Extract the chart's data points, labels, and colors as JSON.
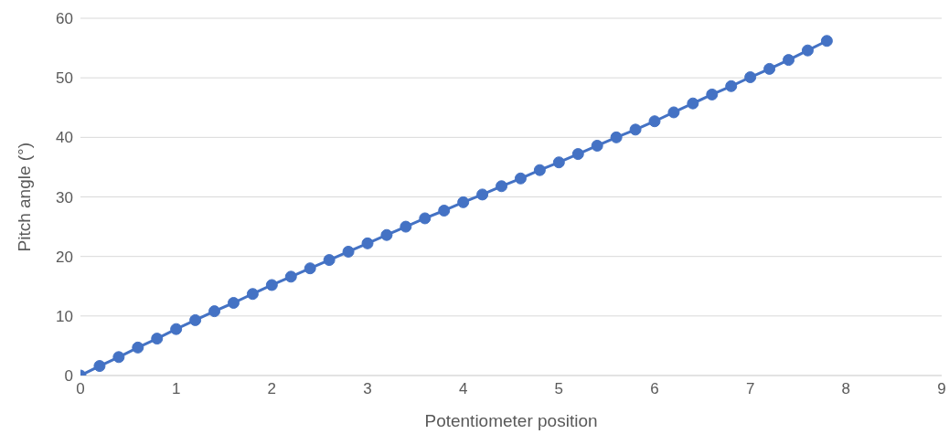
{
  "chart_data": {
    "type": "line",
    "xlabel": "Potentiometer position",
    "ylabel": "Pitch angle (°)",
    "x": [
      0,
      0.2,
      0.4,
      0.6,
      0.8,
      1,
      1.2,
      1.4,
      1.6,
      1.8,
      2,
      2.2,
      2.4,
      2.6,
      2.8,
      3,
      3.2,
      3.4,
      3.6,
      3.8,
      4,
      4.2,
      4.4,
      4.6,
      4.8,
      5,
      5.2,
      5.4,
      5.6,
      5.8,
      6,
      6.2,
      6.4,
      6.6,
      6.8,
      7,
      7.2,
      7.4,
      7.6,
      7.8
    ],
    "series": [
      {
        "color": "#4472c4",
        "values": [
          0,
          1.6,
          3.1,
          4.7,
          6.2,
          7.8,
          9.3,
          10.8,
          12.2,
          13.7,
          15.2,
          16.6,
          18.0,
          19.4,
          20.8,
          22.2,
          23.6,
          25.0,
          26.4,
          27.7,
          29.1,
          30.4,
          31.8,
          33.1,
          34.5,
          35.8,
          37.2,
          38.6,
          40.0,
          41.3,
          42.7,
          44.2,
          45.7,
          47.2,
          48.6,
          50.1,
          51.5,
          53.0,
          54.6,
          56.2
        ]
      }
    ],
    "xlim": [
      0,
      9
    ],
    "xticks": [
      0,
      1,
      2,
      3,
      4,
      5,
      6,
      7,
      8,
      9
    ],
    "ylim": [
      0,
      60
    ],
    "yticks": [
      0,
      10,
      20,
      30,
      40,
      50,
      60
    ],
    "grid": "y",
    "marker": "circle",
    "line_style": "solid",
    "legend": false
  }
}
